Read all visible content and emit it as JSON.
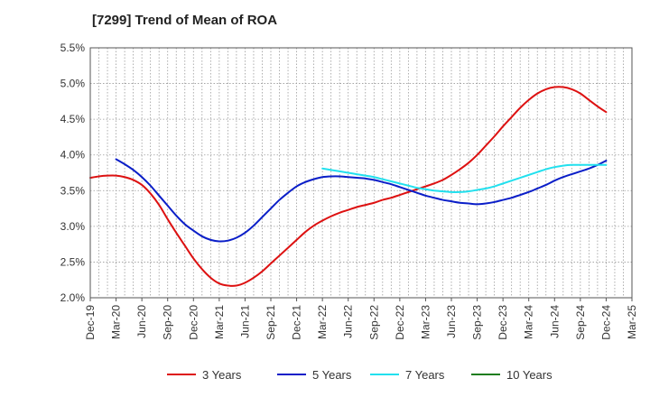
{
  "chart_data": {
    "type": "line",
    "title": "[7299]  Trend of Mean of ROA",
    "xlabel": "",
    "ylabel": "",
    "x_ticks": [
      "Dec-19",
      "Mar-20",
      "Jun-20",
      "Sep-20",
      "Dec-20",
      "Mar-21",
      "Jun-21",
      "Sep-21",
      "Dec-21",
      "Mar-22",
      "Jun-22",
      "Sep-22",
      "Dec-22",
      "Mar-23",
      "Jun-23",
      "Sep-23",
      "Dec-23",
      "Mar-24",
      "Jun-24",
      "Sep-24",
      "Dec-24",
      "Mar-25"
    ],
    "y_ticks": [
      "2.0%",
      "2.5%",
      "3.0%",
      "3.5%",
      "4.0%",
      "4.5%",
      "5.0%",
      "5.5%"
    ],
    "ylim": [
      2.0,
      5.5
    ],
    "grid": true,
    "legend_position": "bottom",
    "series": [
      {
        "name": "3 Years",
        "color": "#dd1111",
        "x": [
          "Dec-19",
          "Jan-20",
          "Feb-20",
          "Mar-20",
          "Apr-20",
          "May-20",
          "Jun-20",
          "Jul-20",
          "Aug-20",
          "Sep-20",
          "Oct-20",
          "Nov-20",
          "Dec-20",
          "Jan-21",
          "Feb-21",
          "Mar-21",
          "Apr-21",
          "May-21",
          "Jun-21",
          "Jul-21",
          "Aug-21",
          "Sep-21",
          "Oct-21",
          "Nov-21",
          "Dec-21",
          "Jan-22",
          "Feb-22",
          "Mar-22",
          "Apr-22",
          "May-22",
          "Jun-22",
          "Jul-22",
          "Aug-22",
          "Sep-22",
          "Oct-22",
          "Nov-22",
          "Dec-22",
          "Jan-23",
          "Feb-23",
          "Mar-23",
          "Apr-23",
          "May-23",
          "Jun-23",
          "Jul-23",
          "Aug-23",
          "Sep-23",
          "Oct-23",
          "Nov-23",
          "Dec-23",
          "Jan-24",
          "Feb-24",
          "Mar-24",
          "Apr-24",
          "May-24",
          "Jun-24",
          "Jul-24",
          "Aug-24",
          "Sep-24",
          "Oct-24",
          "Nov-24",
          "Dec-24"
        ],
        "values": [
          3.68,
          3.7,
          3.71,
          3.71,
          3.69,
          3.65,
          3.58,
          3.46,
          3.3,
          3.1,
          2.91,
          2.73,
          2.55,
          2.4,
          2.28,
          2.2,
          2.17,
          2.17,
          2.21,
          2.28,
          2.37,
          2.48,
          2.59,
          2.7,
          2.81,
          2.92,
          3.01,
          3.08,
          3.14,
          3.19,
          3.23,
          3.27,
          3.3,
          3.33,
          3.37,
          3.4,
          3.44,
          3.48,
          3.52,
          3.56,
          3.6,
          3.65,
          3.72,
          3.8,
          3.89,
          4.0,
          4.13,
          4.26,
          4.4,
          4.53,
          4.66,
          4.77,
          4.86,
          4.92,
          4.95,
          4.95,
          4.92,
          4.86,
          4.77,
          4.68,
          4.6
        ]
      },
      {
        "name": "5 Years",
        "color": "#0a1ec8",
        "x": [
          "Mar-20",
          "Apr-20",
          "May-20",
          "Jun-20",
          "Jul-20",
          "Aug-20",
          "Sep-20",
          "Oct-20",
          "Nov-20",
          "Dec-20",
          "Jan-21",
          "Feb-21",
          "Mar-21",
          "Apr-21",
          "May-21",
          "Jun-21",
          "Jul-21",
          "Aug-21",
          "Sep-21",
          "Oct-21",
          "Nov-21",
          "Dec-21",
          "Jan-22",
          "Feb-22",
          "Mar-22",
          "Apr-22",
          "May-22",
          "Jun-22",
          "Jul-22",
          "Aug-22",
          "Sep-22",
          "Oct-22",
          "Nov-22",
          "Dec-22",
          "Jan-23",
          "Feb-23",
          "Mar-23",
          "Apr-23",
          "May-23",
          "Jun-23",
          "Jul-23",
          "Aug-23",
          "Sep-23",
          "Oct-23",
          "Nov-23",
          "Dec-23",
          "Jan-24",
          "Feb-24",
          "Mar-24",
          "Apr-24",
          "May-24",
          "Jun-24",
          "Jul-24",
          "Aug-24",
          "Sep-24",
          "Oct-24",
          "Nov-24",
          "Dec-24"
        ],
        "values": [
          3.94,
          3.87,
          3.79,
          3.69,
          3.57,
          3.43,
          3.29,
          3.15,
          3.03,
          2.94,
          2.86,
          2.81,
          2.79,
          2.8,
          2.84,
          2.91,
          3.01,
          3.13,
          3.25,
          3.37,
          3.47,
          3.56,
          3.62,
          3.66,
          3.69,
          3.7,
          3.7,
          3.69,
          3.68,
          3.67,
          3.65,
          3.62,
          3.59,
          3.55,
          3.51,
          3.47,
          3.43,
          3.4,
          3.37,
          3.35,
          3.33,
          3.32,
          3.31,
          3.32,
          3.34,
          3.37,
          3.4,
          3.44,
          3.48,
          3.53,
          3.58,
          3.64,
          3.69,
          3.73,
          3.77,
          3.81,
          3.86,
          3.92
        ]
      },
      {
        "name": "7 Years",
        "color": "#22e0ee",
        "x": [
          "Mar-22",
          "Apr-22",
          "May-22",
          "Jun-22",
          "Jul-22",
          "Aug-22",
          "Sep-22",
          "Oct-22",
          "Nov-22",
          "Dec-22",
          "Jan-23",
          "Feb-23",
          "Mar-23",
          "Apr-23",
          "May-23",
          "Jun-23",
          "Jul-23",
          "Aug-23",
          "Sep-23",
          "Oct-23",
          "Nov-23",
          "Dec-23",
          "Jan-24",
          "Feb-24",
          "Mar-24",
          "Apr-24",
          "May-24",
          "Jun-24",
          "Jul-24",
          "Aug-24",
          "Sep-24",
          "Oct-24",
          "Nov-24",
          "Dec-24"
        ],
        "values": [
          3.81,
          3.79,
          3.77,
          3.75,
          3.73,
          3.71,
          3.69,
          3.66,
          3.63,
          3.6,
          3.57,
          3.54,
          3.52,
          3.5,
          3.49,
          3.48,
          3.48,
          3.49,
          3.51,
          3.53,
          3.56,
          3.6,
          3.64,
          3.68,
          3.72,
          3.76,
          3.8,
          3.83,
          3.85,
          3.86,
          3.86,
          3.86,
          3.86,
          3.86
        ]
      },
      {
        "name": "10 Years",
        "color": "#1e7d1e",
        "x": [],
        "values": []
      }
    ]
  }
}
